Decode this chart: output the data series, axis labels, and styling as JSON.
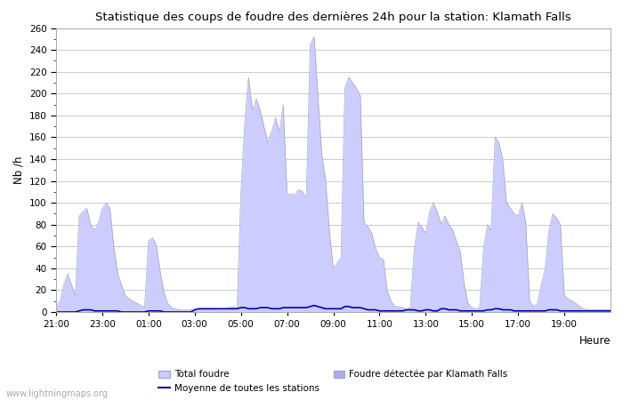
{
  "title": "Statistique des coups de foudre des dernières 24h pour la station: Klamath Falls",
  "ylabel": "Nb /h",
  "xlabel": "Heure",
  "ylim": [
    0,
    260
  ],
  "yticks": [
    0,
    20,
    40,
    60,
    80,
    100,
    120,
    140,
    160,
    180,
    200,
    220,
    240,
    260
  ],
  "xtick_labels": [
    "21:00",
    "23:00",
    "01:00",
    "03:00",
    "05:00",
    "07:00",
    "09:00",
    "11:00",
    "13:00",
    "15:00",
    "17:00",
    "19:00"
  ],
  "fill_color": "#ccccff",
  "fill_edge_color": "#9999bb",
  "line_color": "#0000bb",
  "bg_color": "#ffffff",
  "grid_color": "#cccccc",
  "watermark": "www.lightningmaps.org",
  "legend_total": "Total foudre",
  "legend_klamath": "Foudre détectée par Klamath Falls",
  "legend_moyenne": "Moyenne de toutes les stations",
  "hours": [
    21.0,
    21.17,
    21.33,
    21.5,
    21.67,
    21.83,
    22.0,
    22.17,
    22.33,
    22.5,
    22.67,
    22.83,
    23.0,
    23.17,
    23.33,
    23.5,
    23.67,
    23.83,
    24.0,
    24.17,
    24.33,
    24.5,
    24.67,
    24.83,
    25.0,
    25.17,
    25.33,
    25.5,
    25.67,
    25.83,
    26.0,
    26.17,
    26.33,
    26.5,
    26.67,
    26.83,
    27.0,
    27.17,
    27.33,
    27.5,
    27.67,
    27.83,
    28.0,
    28.17,
    28.33,
    28.5,
    28.67,
    28.83,
    29.0,
    29.17,
    29.33,
    29.5,
    29.67,
    29.83,
    30.0,
    30.17,
    30.33,
    30.5,
    30.67,
    30.83,
    31.0,
    31.17,
    31.33,
    31.5,
    31.67,
    31.83,
    32.0,
    32.17,
    32.33,
    32.5,
    32.67,
    32.83,
    33.0,
    33.17,
    33.33,
    33.5,
    33.67,
    33.83,
    34.0,
    34.17,
    34.33,
    34.5,
    34.67,
    34.83,
    35.0,
    35.17,
    35.33,
    35.5,
    35.67,
    35.83,
    36.0,
    36.17,
    36.33,
    36.5,
    36.67,
    36.83,
    37.0,
    37.17,
    37.33,
    37.5,
    37.67,
    37.83,
    38.0,
    38.17,
    38.33,
    38.5,
    38.67,
    38.83,
    39.0,
    39.17,
    39.33,
    39.5,
    39.67,
    39.83,
    40.0,
    40.17,
    40.33,
    40.5,
    40.67,
    40.83,
    41.0,
    41.17,
    41.33,
    41.5,
    41.67,
    41.83,
    42.0,
    42.17,
    42.33,
    42.5,
    42.67,
    42.83,
    43.0,
    43.17,
    43.33,
    43.5,
    43.67,
    43.83,
    44.0,
    44.17,
    44.33,
    44.5,
    44.67,
    44.83,
    45.0
  ],
  "total_foudre": [
    5,
    10,
    25,
    35,
    25,
    15,
    88,
    92,
    95,
    80,
    75,
    82,
    95,
    100,
    95,
    60,
    35,
    25,
    15,
    12,
    10,
    8,
    6,
    4,
    65,
    68,
    62,
    38,
    18,
    8,
    4,
    3,
    2,
    2,
    2,
    2,
    2,
    2,
    2,
    2,
    2,
    2,
    2,
    2,
    3,
    4,
    5,
    3,
    110,
    175,
    215,
    185,
    195,
    185,
    170,
    155,
    165,
    178,
    165,
    190,
    108,
    108,
    107,
    112,
    110,
    105,
    245,
    252,
    200,
    145,
    120,
    75,
    40,
    45,
    50,
    205,
    215,
    210,
    205,
    198,
    82,
    78,
    72,
    58,
    50,
    48,
    20,
    10,
    5,
    5,
    4,
    3,
    4,
    57,
    82,
    78,
    72,
    92,
    100,
    92,
    80,
    88,
    80,
    75,
    65,
    55,
    25,
    8,
    4,
    3,
    4,
    58,
    80,
    75,
    160,
    155,
    140,
    100,
    95,
    90,
    88,
    100,
    82,
    10,
    5,
    8,
    25,
    40,
    75,
    90,
    86,
    80,
    15,
    12,
    10,
    8,
    5,
    3,
    2,
    2,
    2,
    2,
    2,
    2,
    2
  ],
  "moyenne": [
    0,
    0,
    0,
    0,
    0,
    0,
    1,
    2,
    2,
    2,
    1,
    1,
    1,
    1,
    1,
    1,
    1,
    0,
    0,
    0,
    0,
    0,
    0,
    0,
    1,
    1,
    1,
    1,
    0,
    0,
    0,
    0,
    0,
    0,
    0,
    0,
    2,
    3,
    3,
    3,
    3,
    3,
    3,
    3,
    3,
    3,
    3,
    3,
    4,
    4,
    3,
    3,
    3,
    4,
    4,
    4,
    3,
    3,
    3,
    4,
    4,
    4,
    4,
    4,
    4,
    4,
    5,
    6,
    5,
    4,
    3,
    3,
    3,
    3,
    3,
    5,
    5,
    4,
    4,
    4,
    3,
    2,
    2,
    2,
    1,
    1,
    1,
    1,
    1,
    1,
    1,
    2,
    2,
    2,
    1,
    1,
    2,
    2,
    1,
    1,
    3,
    3,
    2,
    2,
    2,
    1,
    1,
    1,
    1,
    1,
    1,
    1,
    2,
    2,
    3,
    3,
    2,
    2,
    2,
    1,
    1,
    1,
    1,
    1,
    1,
    1,
    1,
    1,
    2,
    2,
    2,
    1,
    1,
    1,
    1,
    1,
    1,
    1,
    1,
    1,
    1,
    1,
    1,
    1,
    1
  ]
}
